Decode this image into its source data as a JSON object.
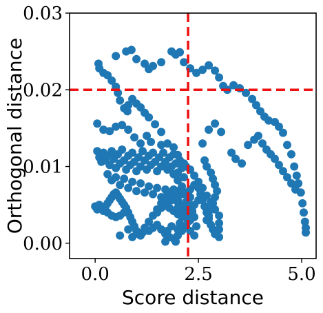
{
  "chart_data": {
    "type": "scatter",
    "xlabel": "Score distance",
    "ylabel": "Orthogonal distance",
    "xlim": [
      -0.62,
      5.35
    ],
    "ylim": [
      -0.002,
      0.03
    ],
    "xticks": [
      0.0,
      2.5,
      5.0
    ],
    "xtick_labels": [
      "0.0",
      "2.5",
      "5.0"
    ],
    "yticks": [
      0.0,
      0.01,
      0.02,
      0.03
    ],
    "ytick_labels": [
      "0.00",
      "0.01",
      "0.02",
      "0.03"
    ],
    "grid": false,
    "marker_color": "#1f77b4",
    "threshold_color": "#ee1111",
    "thresholds": {
      "x": 2.25,
      "y": 0.02
    },
    "series": [
      {
        "values": [
          [
            0.08,
            0.0234
          ],
          [
            0.1,
            0.0228
          ],
          [
            0.2,
            0.0222
          ],
          [
            0.3,
            0.0219
          ],
          [
            0.4,
            0.0212
          ],
          [
            0.5,
            0.0204
          ],
          [
            0.55,
            0.0196
          ],
          [
            0.6,
            0.0186
          ],
          [
            0.7,
            0.0176
          ],
          [
            0.78,
            0.0172
          ],
          [
            0.8,
            0.018
          ],
          [
            0.9,
            0.0188
          ],
          [
            1.0,
            0.0182
          ],
          [
            1.1,
            0.0177
          ],
          [
            1.2,
            0.017
          ],
          [
            1.3,
            0.0164
          ],
          [
            1.45,
            0.0155
          ],
          [
            1.6,
            0.0145
          ],
          [
            0.5,
            0.0244
          ],
          [
            0.75,
            0.025
          ],
          [
            0.88,
            0.0252
          ],
          [
            1.0,
            0.024
          ],
          [
            1.2,
            0.0234
          ],
          [
            1.3,
            0.0227
          ],
          [
            1.4,
            0.0231
          ],
          [
            1.6,
            0.0236
          ],
          [
            1.85,
            0.025
          ],
          [
            1.95,
            0.0246
          ],
          [
            2.05,
            0.0249
          ],
          [
            2.15,
            0.0236
          ],
          [
            2.3,
            0.0228
          ],
          [
            2.45,
            0.0222
          ],
          [
            2.6,
            0.0226
          ],
          [
            2.75,
            0.0232
          ],
          [
            2.9,
            0.0225
          ],
          [
            3.0,
            0.0216
          ],
          [
            3.1,
            0.0205
          ],
          [
            3.2,
            0.02
          ],
          [
            3.35,
            0.0206
          ],
          [
            3.5,
            0.0202
          ],
          [
            3.65,
            0.0196
          ],
          [
            3.8,
            0.0188
          ],
          [
            3.9,
            0.018
          ],
          [
            4.0,
            0.0172
          ],
          [
            4.1,
            0.0165
          ],
          [
            4.2,
            0.016
          ],
          [
            4.35,
            0.0158
          ],
          [
            4.45,
            0.0152
          ],
          [
            4.55,
            0.0144
          ],
          [
            4.65,
            0.0128
          ],
          [
            4.75,
            0.0116
          ],
          [
            4.82,
            0.01
          ],
          [
            4.88,
            0.0088
          ],
          [
            4.92,
            0.0078
          ],
          [
            4.98,
            0.0066
          ],
          [
            5.02,
            0.0052
          ],
          [
            5.05,
            0.004
          ],
          [
            5.08,
            0.0028
          ],
          [
            5.1,
            0.002
          ],
          [
            5.1,
            0.0014
          ],
          [
            3.3,
            0.0118
          ],
          [
            3.4,
            0.011
          ],
          [
            3.55,
            0.0104
          ],
          [
            3.7,
            0.0128
          ],
          [
            3.85,
            0.0135
          ],
          [
            3.95,
            0.014
          ],
          [
            4.05,
            0.013
          ],
          [
            4.15,
            0.0122
          ],
          [
            4.25,
            0.0116
          ],
          [
            4.35,
            0.011
          ],
          [
            4.45,
            0.0102
          ],
          [
            4.55,
            0.0094
          ],
          [
            4.65,
            0.0086
          ],
          [
            4.75,
            0.0078
          ],
          [
            4.85,
            0.007
          ],
          [
            2.75,
            0.0148
          ],
          [
            2.9,
            0.0156
          ],
          [
            3.05,
            0.0145
          ],
          [
            2.6,
            0.013
          ],
          [
            0.05,
            0.0156
          ],
          [
            0.2,
            0.0148
          ],
          [
            0.35,
            0.0146
          ],
          [
            0.5,
            0.0152
          ],
          [
            0.65,
            0.0154
          ],
          [
            0.8,
            0.0148
          ],
          [
            0.95,
            0.0138
          ],
          [
            1.1,
            0.013
          ],
          [
            1.25,
            0.014
          ],
          [
            1.35,
            0.0132
          ],
          [
            1.6,
            0.0128
          ],
          [
            1.75,
            0.013
          ],
          [
            1.9,
            0.0125
          ],
          [
            2.0,
            0.0115
          ],
          [
            2.15,
            0.0104
          ],
          [
            2.3,
            0.0096
          ],
          [
            2.4,
            0.0088
          ],
          [
            2.5,
            0.008
          ],
          [
            2.6,
            0.0072
          ],
          [
            2.7,
            0.0062
          ],
          [
            2.8,
            0.0054
          ],
          [
            2.9,
            0.0044
          ],
          [
            3.0,
            0.0036
          ],
          [
            3.0,
            0.0026
          ],
          [
            3.0,
            0.0018
          ],
          [
            3.0,
            0.0008
          ],
          [
            0.05,
            0.012
          ],
          [
            0.1,
            0.0112
          ],
          [
            0.15,
            0.0106
          ],
          [
            0.2,
            0.0118
          ],
          [
            0.25,
            0.0108
          ],
          [
            0.3,
            0.0114
          ],
          [
            0.35,
            0.0102
          ],
          [
            0.4,
            0.012
          ],
          [
            0.45,
            0.011
          ],
          [
            0.5,
            0.0098
          ],
          [
            0.55,
            0.0116
          ],
          [
            0.6,
            0.0104
          ],
          [
            0.65,
            0.0122
          ],
          [
            0.7,
            0.0108
          ],
          [
            0.75,
            0.0096
          ],
          [
            0.8,
            0.0114
          ],
          [
            0.85,
            0.0102
          ],
          [
            0.9,
            0.0118
          ],
          [
            0.95,
            0.0106
          ],
          [
            1.0,
            0.0094
          ],
          [
            1.05,
            0.0112
          ],
          [
            1.1,
            0.01
          ],
          [
            1.15,
            0.012
          ],
          [
            1.2,
            0.0108
          ],
          [
            1.25,
            0.0096
          ],
          [
            1.3,
            0.0114
          ],
          [
            1.35,
            0.0102
          ],
          [
            1.4,
            0.0118
          ],
          [
            1.45,
            0.0106
          ],
          [
            1.5,
            0.0094
          ],
          [
            1.55,
            0.0112
          ],
          [
            1.6,
            0.01
          ],
          [
            1.65,
            0.0118
          ],
          [
            1.7,
            0.0106
          ],
          [
            1.75,
            0.0096
          ],
          [
            1.8,
            0.0112
          ],
          [
            1.85,
            0.01
          ],
          [
            1.9,
            0.0116
          ],
          [
            1.95,
            0.0104
          ],
          [
            2.0,
            0.0092
          ],
          [
            2.05,
            0.0108
          ],
          [
            2.1,
            0.0098
          ],
          [
            2.15,
            0.0086
          ],
          [
            2.2,
            0.01
          ],
          [
            0.3,
            0.009
          ],
          [
            0.4,
            0.0082
          ],
          [
            0.5,
            0.0086
          ],
          [
            0.6,
            0.0076
          ],
          [
            0.7,
            0.0084
          ],
          [
            0.8,
            0.0072
          ],
          [
            0.9,
            0.008
          ],
          [
            1.0,
            0.0068
          ],
          [
            1.1,
            0.0078
          ],
          [
            1.2,
            0.0066
          ],
          [
            1.3,
            0.0074
          ],
          [
            1.4,
            0.0064
          ],
          [
            1.5,
            0.0072
          ],
          [
            1.6,
            0.006
          ],
          [
            1.7,
            0.007
          ],
          [
            1.8,
            0.0058
          ],
          [
            1.9,
            0.0066
          ],
          [
            2.0,
            0.0056
          ],
          [
            2.1,
            0.0064
          ],
          [
            2.2,
            0.0052
          ],
          [
            2.3,
            0.006
          ],
          [
            2.4,
            0.005
          ],
          [
            2.5,
            0.0056
          ],
          [
            0.0,
            0.0048
          ],
          [
            0.05,
            0.0044
          ],
          [
            0.1,
            0.005
          ],
          [
            0.15,
            0.0046
          ],
          [
            0.2,
            0.0042
          ],
          [
            0.25,
            0.0048
          ],
          [
            0.3,
            0.0052
          ],
          [
            0.35,
            0.0056
          ],
          [
            0.4,
            0.006
          ],
          [
            0.45,
            0.0064
          ],
          [
            0.5,
            0.0066
          ],
          [
            0.55,
            0.0062
          ],
          [
            0.6,
            0.0058
          ],
          [
            0.65,
            0.0054
          ],
          [
            0.7,
            0.005
          ],
          [
            0.75,
            0.0046
          ],
          [
            0.8,
            0.004
          ],
          [
            0.85,
            0.0034
          ],
          [
            0.9,
            0.0028
          ],
          [
            0.95,
            0.0022
          ],
          [
            1.0,
            0.0016
          ],
          [
            1.05,
            0.0012
          ],
          [
            1.1,
            0.001
          ],
          [
            1.15,
            0.0014
          ],
          [
            1.2,
            0.002
          ],
          [
            1.3,
            0.0028
          ],
          [
            1.4,
            0.0036
          ],
          [
            1.5,
            0.0044
          ],
          [
            1.6,
            0.0052
          ],
          [
            1.7,
            0.006
          ],
          [
            1.8,
            0.0066
          ],
          [
            1.9,
            0.007
          ],
          [
            2.0,
            0.0068
          ],
          [
            0.3,
            0.004
          ],
          [
            0.4,
            0.0036
          ],
          [
            0.5,
            0.0034
          ],
          [
            0.6,
            0.0036
          ],
          [
            0.7,
            0.004
          ],
          [
            1.3,
            0.0016
          ],
          [
            1.4,
            0.002
          ],
          [
            1.5,
            0.0024
          ],
          [
            1.6,
            0.0018
          ],
          [
            1.7,
            0.0012
          ],
          [
            1.8,
            0.0008
          ],
          [
            1.9,
            0.0006
          ],
          [
            2.0,
            0.001
          ],
          [
            2.1,
            0.0016
          ],
          [
            2.2,
            0.0022
          ],
          [
            2.3,
            0.003
          ],
          [
            2.35,
            0.004
          ],
          [
            1.5,
            0.004
          ],
          [
            1.6,
            0.0046
          ],
          [
            1.7,
            0.005
          ],
          [
            1.8,
            0.0046
          ],
          [
            1.9,
            0.0042
          ],
          [
            2.0,
            0.0038
          ],
          [
            2.1,
            0.0034
          ],
          [
            2.15,
            0.0044
          ],
          [
            2.2,
            0.0054
          ],
          [
            2.25,
            0.0064
          ],
          [
            2.3,
            0.007
          ],
          [
            2.4,
            0.0076
          ],
          [
            2.5,
            0.0072
          ],
          [
            2.55,
            0.0064
          ],
          [
            2.6,
            0.0056
          ],
          [
            2.65,
            0.0048
          ],
          [
            2.7,
            0.004
          ],
          [
            2.75,
            0.0032
          ],
          [
            2.8,
            0.0024
          ],
          [
            2.85,
            0.0018
          ],
          [
            2.9,
            0.0012
          ],
          [
            1.9,
            0.009
          ],
          [
            2.0,
            0.0082
          ],
          [
            2.1,
            0.0074
          ],
          [
            2.2,
            0.0066
          ],
          [
            2.25,
            0.0058
          ],
          [
            2.3,
            0.005
          ],
          [
            2.35,
            0.0042
          ],
          [
            2.4,
            0.0034
          ],
          [
            2.2,
            0.004
          ],
          [
            2.1,
            0.0048
          ],
          [
            2.0,
            0.0054
          ],
          [
            1.95,
            0.0062
          ],
          [
            1.85,
            0.0056
          ],
          [
            1.75,
            0.0048
          ],
          [
            2.0,
            0.0046
          ],
          [
            2.1,
            0.004
          ],
          [
            2.2,
            0.0034
          ],
          [
            2.25,
            0.0028
          ],
          [
            0.6,
            0.001
          ],
          [
            0.8,
            0.0018
          ],
          [
            0.9,
            0.0008
          ],
          [
            1.7,
            0.0002
          ],
          [
            1.75,
            0.0016
          ],
          [
            1.85,
            0.0022
          ],
          [
            1.95,
            0.0002
          ],
          [
            2.0,
            0.0018
          ],
          [
            2.05,
            0.0026
          ],
          [
            2.3,
            0.0016
          ],
          [
            2.4,
            0.001
          ],
          [
            2.45,
            0.0022
          ],
          [
            2.7,
            0.003
          ],
          [
            2.75,
            0.0036
          ],
          [
            2.8,
            0.0044
          ],
          [
            2.85,
            0.0052
          ],
          [
            2.9,
            0.006
          ],
          [
            2.95,
            0.0068
          ],
          [
            2.9,
            0.0076
          ],
          [
            2.85,
            0.0084
          ],
          [
            2.8,
            0.0092
          ],
          [
            2.7,
            0.01
          ],
          [
            2.65,
            0.0108
          ]
        ]
      }
    ]
  }
}
